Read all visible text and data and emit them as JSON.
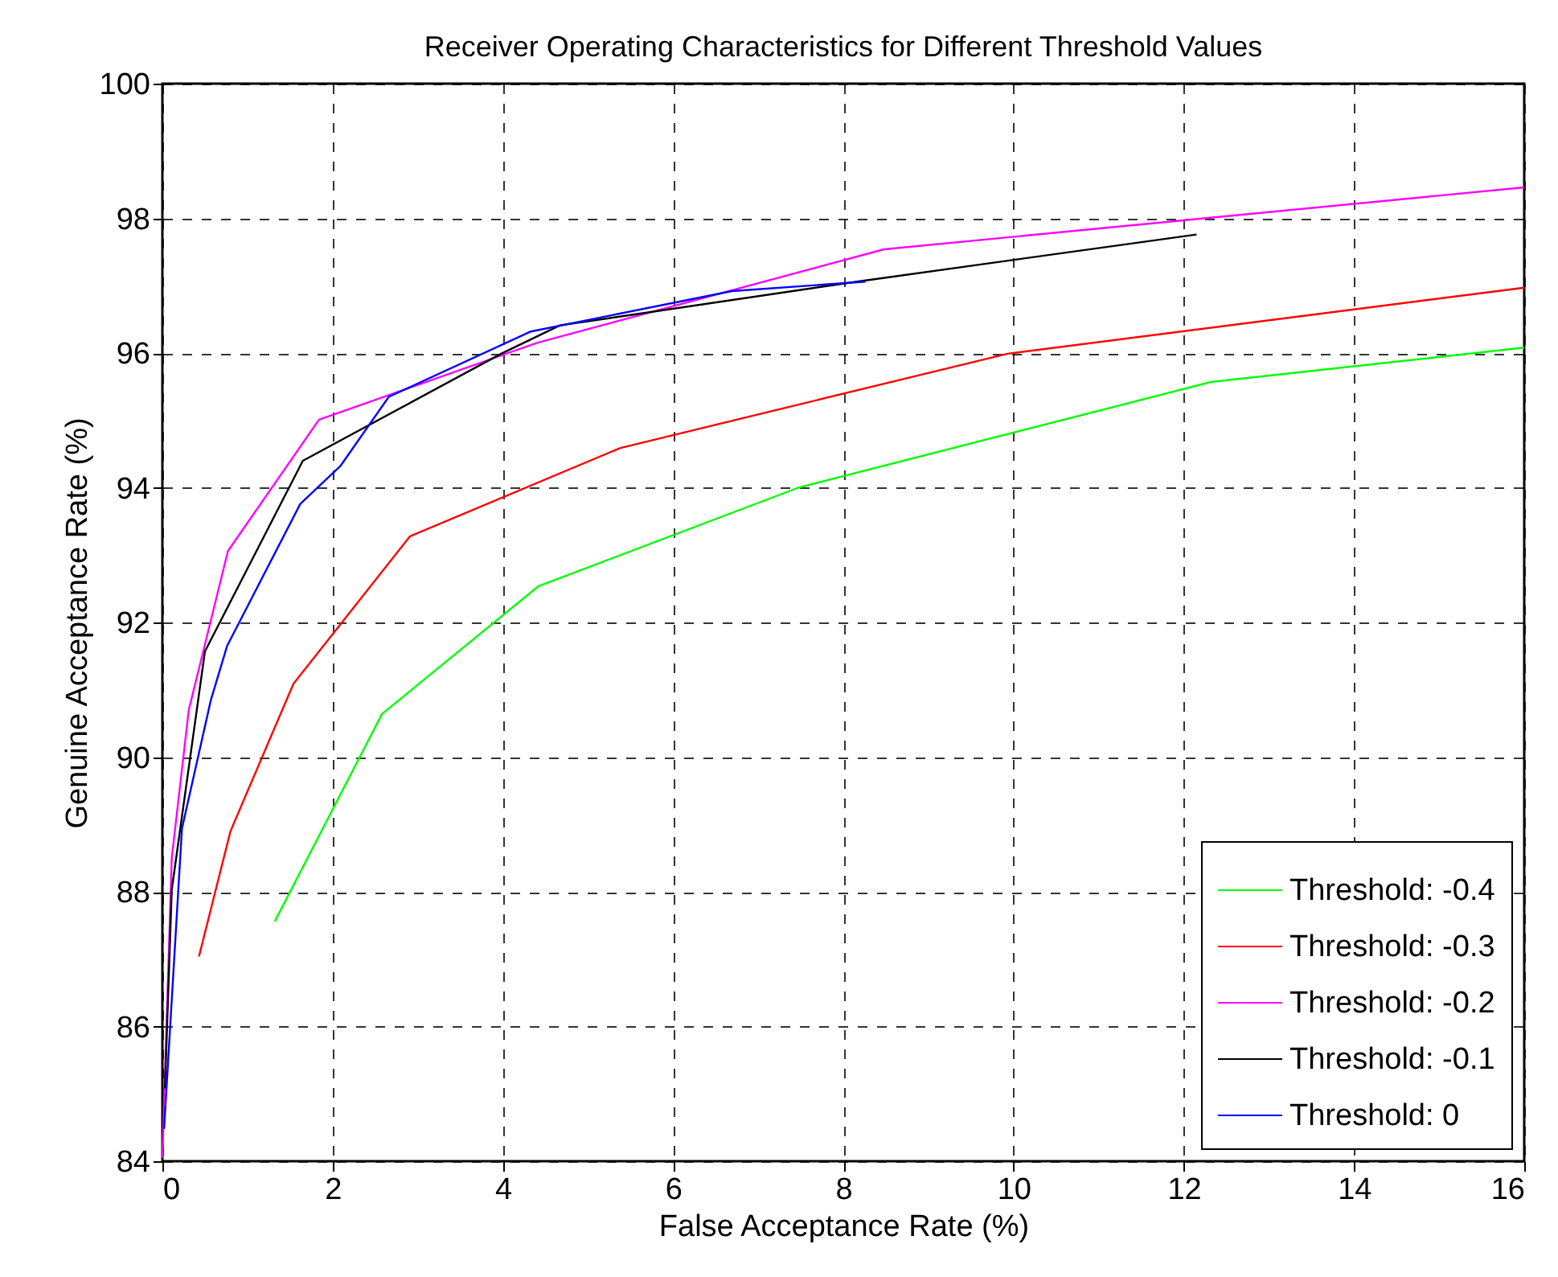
{
  "chart_data": {
    "type": "line",
    "title": "Receiver Operating Characteristics for Different Threshold Values",
    "xlabel": "False Acceptance Rate (%)",
    "ylabel": "Genuine Acceptance Rate (%)",
    "xlim": [
      0,
      16
    ],
    "xticks": [
      0,
      2,
      4,
      6,
      8,
      10,
      12,
      14,
      16
    ],
    "ylim": [
      84,
      100
    ],
    "yticks": [
      84,
      86,
      88,
      90,
      92,
      94,
      96,
      98,
      100
    ],
    "grid": true,
    "legend": "bottom right",
    "line_style": "solid",
    "marker": "none",
    "series": [
      {
        "name": "Threshold: -0.4",
        "color": "#00ff00",
        "x": [
          1.32,
          2.58,
          4.42,
          7.47,
          12.32,
          16.0
        ],
        "values": [
          87.56,
          90.64,
          92.54,
          94.0,
          95.57,
          96.08
        ]
      },
      {
        "name": "Threshold: -0.3",
        "color": "#ff0000",
        "x": [
          0.43,
          0.8,
          1.54,
          2.91,
          5.38,
          9.93,
          16.0
        ],
        "values": [
          87.04,
          88.9,
          91.09,
          93.28,
          94.59,
          95.99,
          96.97
        ]
      },
      {
        "name": "Threshold: -0.2",
        "color": "#ff00ff",
        "x": [
          0.0,
          0.11,
          0.31,
          0.77,
          1.84,
          4.4,
          8.48,
          16.0
        ],
        "values": [
          84.05,
          88.5,
          90.7,
          93.06,
          95.01,
          96.15,
          97.54,
          98.46
        ]
      },
      {
        "name": "Threshold: -0.1",
        "color": "#000000",
        "x": [
          0.03,
          0.11,
          0.5,
          1.65,
          3.98,
          4.67,
          8.16,
          12.15
        ],
        "values": [
          85.08,
          88.03,
          91.57,
          94.4,
          95.99,
          96.41,
          97.06,
          97.76
        ]
      },
      {
        "name": "Threshold: 0",
        "color": "#0000ff",
        "x": [
          0.02,
          0.23,
          0.57,
          0.76,
          1.62,
          2.09,
          2.66,
          4.33,
          6.69,
          8.26
        ],
        "values": [
          84.48,
          88.94,
          90.85,
          91.65,
          93.76,
          94.32,
          95.35,
          96.32,
          96.92,
          97.06
        ]
      }
    ]
  }
}
